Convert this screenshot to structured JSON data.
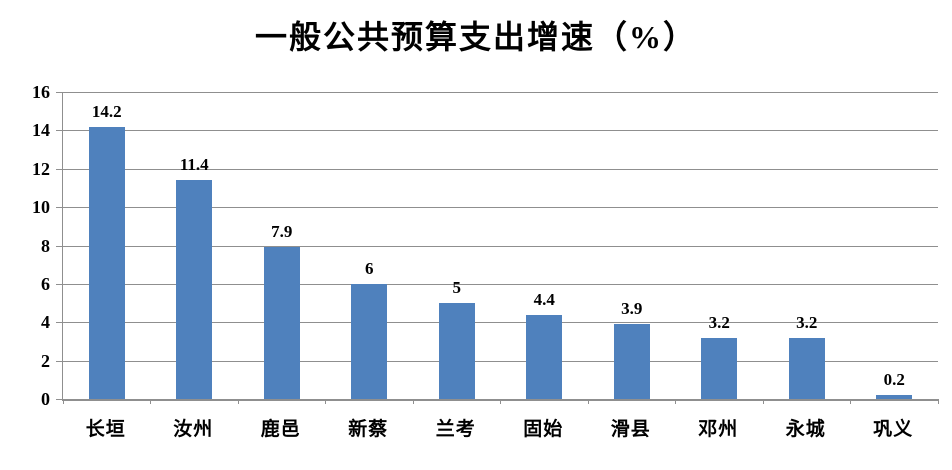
{
  "chart_data": {
    "type": "bar",
    "title": "一般公共预算支出增速（%）",
    "categories": [
      "长垣",
      "汝州",
      "鹿邑",
      "新蔡",
      "兰考",
      "固始",
      "滑县",
      "邓州",
      "永城",
      "巩义"
    ],
    "values": [
      14.2,
      11.4,
      7.9,
      6,
      5,
      4.4,
      3.9,
      3.2,
      3.2,
      0.2
    ],
    "value_labels": [
      "14.2",
      "11.4",
      "7.9",
      "6",
      "5",
      "4.4",
      "3.9",
      "3.2",
      "3.2",
      "0.2"
    ],
    "xlabel": "",
    "ylabel": "",
    "ylim": [
      0,
      16
    ],
    "yticks": [
      0,
      2,
      4,
      6,
      8,
      10,
      12,
      14,
      16
    ],
    "grid": true,
    "legend_position": "none",
    "colors": {
      "bar": "#4f81bd",
      "gridline": "#8f8f8f",
      "axis": "#8f8f8f",
      "text": "#000000",
      "background": "#ffffff"
    }
  }
}
